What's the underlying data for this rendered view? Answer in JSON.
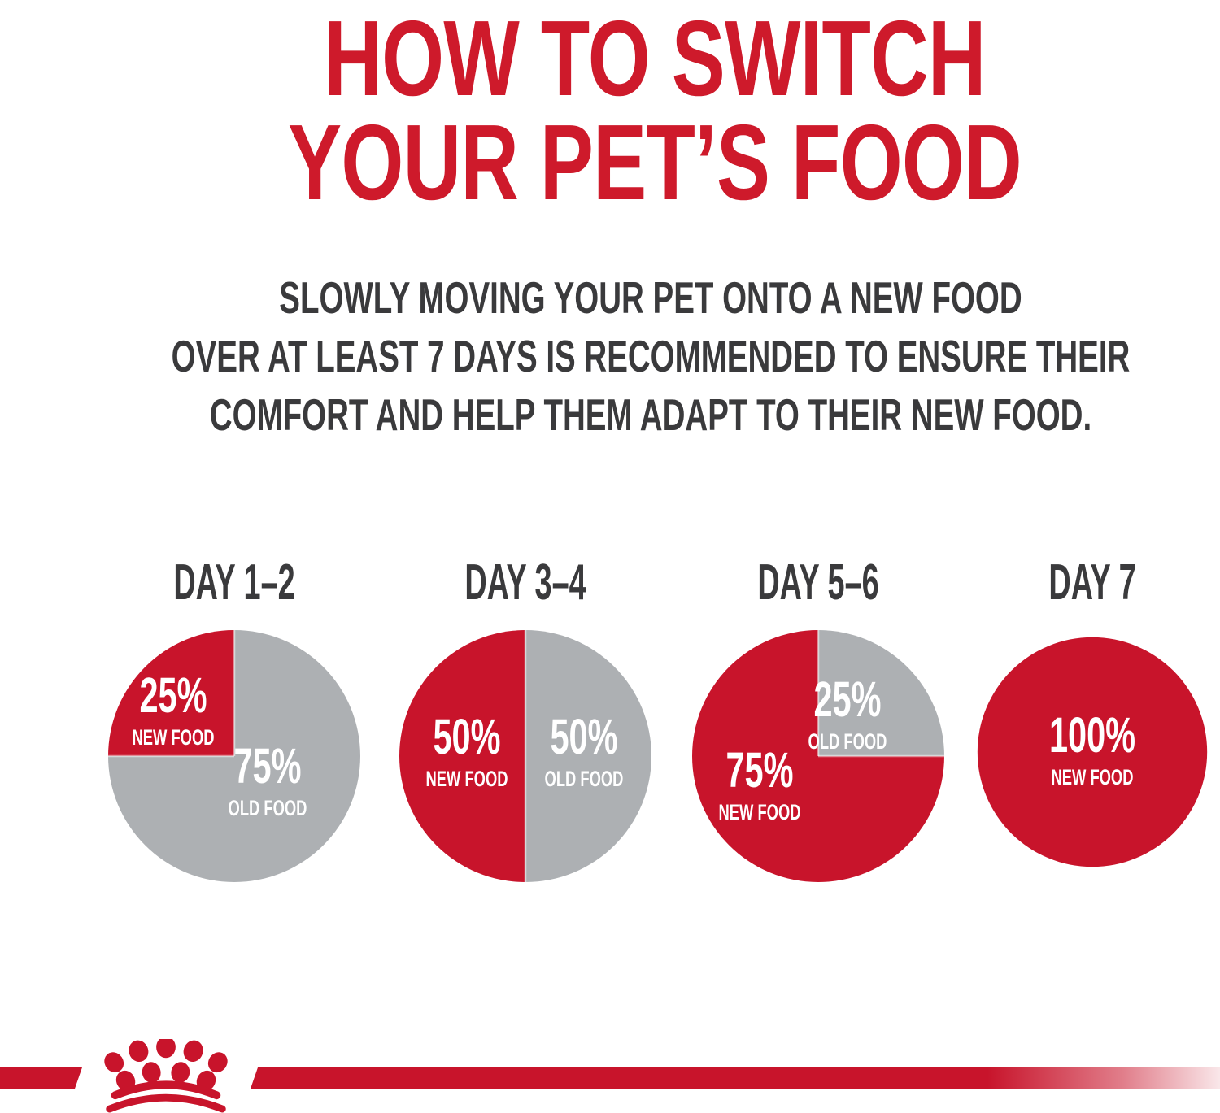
{
  "colors": {
    "red": "#C8142B",
    "red_title": "#CE1A2B",
    "gray": "#ADB0B3",
    "dark": "#3A3A3C",
    "white": "#FFFFFF"
  },
  "title": {
    "line1": "HOW TO SWITCH",
    "line2": "YOUR PET’S FOOD"
  },
  "subtitle": {
    "line1": "SLOWLY MOVING YOUR PET ONTO A NEW FOOD",
    "line2": "OVER AT LEAST 7 DAYS IS RECOMMENDED TO ENSURE THEIR",
    "line3": "COMFORT AND HELP THEM ADAPT TO THEIR NEW FOOD."
  },
  "days": [
    {
      "label": "DAY 1–2",
      "start_angle": 270,
      "slices": [
        {
          "value": 25,
          "color": "red",
          "pct": "25%",
          "food": "NEW FOOD"
        },
        {
          "value": 75,
          "color": "gray",
          "pct": "75%",
          "food": "OLD FOOD"
        }
      ]
    },
    {
      "label": "DAY 3–4",
      "start_angle": 180,
      "slices": [
        {
          "value": 50,
          "color": "red",
          "pct": "50%",
          "food": "NEW FOOD"
        },
        {
          "value": 50,
          "color": "gray",
          "pct": "50%",
          "food": "OLD FOOD"
        }
      ]
    },
    {
      "label": "DAY 5–6",
      "start_angle": 0,
      "slices": [
        {
          "value": 25,
          "color": "gray",
          "pct": "25%",
          "food": "OLD FOOD"
        },
        {
          "value": 75,
          "color": "red",
          "pct": "75%",
          "food": "NEW FOOD"
        }
      ]
    },
    {
      "label": "DAY 7",
      "start_angle": 0,
      "slices": [
        {
          "value": 100,
          "color": "red",
          "pct": "100%",
          "food": "NEW FOOD"
        }
      ]
    }
  ],
  "chart_data": [
    {
      "type": "pie",
      "title": "DAY 1–2",
      "labels": [
        "NEW FOOD",
        "OLD FOOD"
      ],
      "values": [
        25,
        75
      ],
      "colors": [
        "#C8142B",
        "#ADB0B3"
      ],
      "annotations": [
        "25% NEW FOOD",
        "75% OLD FOOD"
      ],
      "start_angle_deg_clockwise_from_top": 270
    },
    {
      "type": "pie",
      "title": "DAY 3–4",
      "labels": [
        "NEW FOOD",
        "OLD FOOD"
      ],
      "values": [
        50,
        50
      ],
      "colors": [
        "#C8142B",
        "#ADB0B3"
      ],
      "annotations": [
        "50% NEW FOOD",
        "50% OLD FOOD"
      ],
      "start_angle_deg_clockwise_from_top": 180
    },
    {
      "type": "pie",
      "title": "DAY 5–6",
      "labels": [
        "OLD FOOD",
        "NEW FOOD"
      ],
      "values": [
        25,
        75
      ],
      "colors": [
        "#ADB0B3",
        "#C8142B"
      ],
      "annotations": [
        "25% OLD FOOD",
        "75% NEW FOOD"
      ],
      "start_angle_deg_clockwise_from_top": 0
    },
    {
      "type": "pie",
      "title": "DAY 7",
      "labels": [
        "NEW FOOD"
      ],
      "values": [
        100
      ],
      "colors": [
        "#C8142B"
      ],
      "annotations": [
        "100% NEW FOOD"
      ],
      "start_angle_deg_clockwise_from_top": 0
    }
  ],
  "logo": {
    "name": "royal-canin-crown",
    "color": "#C8142B"
  }
}
